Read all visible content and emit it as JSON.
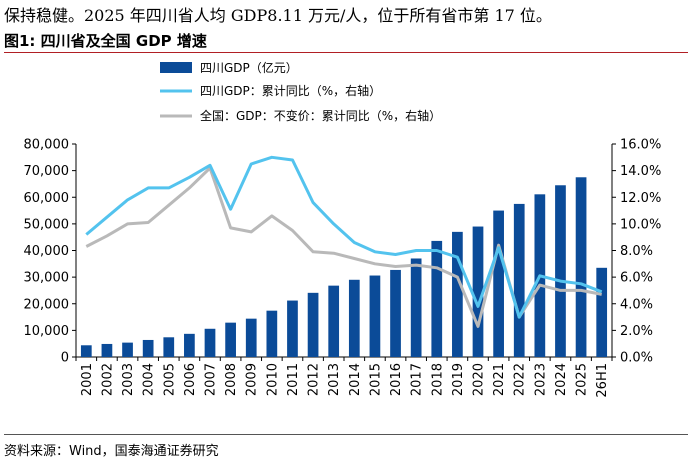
{
  "header": {
    "top_text": "保持稳健。2025 年四川省人均 GDP8.11 万元/人，位于所有省市第 17 位。",
    "figure_title": "图1:  四川省及全国 GDP 增速"
  },
  "footer": {
    "source": "资料来源：Wind，国泰海通证券研究"
  },
  "colors": {
    "bar": "#0b4b98",
    "sichuan_line": "#53c3ee",
    "national_line": "#b9b9b9"
  },
  "chart_data": {
    "type": "bar",
    "categories": [
      "2001",
      "2002",
      "2003",
      "2004",
      "2005",
      "2006",
      "2007",
      "2008",
      "2009",
      "2010",
      "2011",
      "2012",
      "2013",
      "2014",
      "2015",
      "2016",
      "2017",
      "2018",
      "2019",
      "2020",
      "2021",
      "2022",
      "2023",
      "2024",
      "2025",
      "26H1"
    ],
    "series": [
      {
        "name": "四川GDP（亿元）",
        "type": "bar",
        "axis": "left",
        "values": [
          4400,
          4900,
          5400,
          6400,
          7400,
          8700,
          10600,
          12900,
          14400,
          17400,
          21200,
          24100,
          26800,
          29000,
          30600,
          32700,
          37000,
          43600,
          47000,
          49000,
          55000,
          57500,
          61100,
          64500,
          67500,
          33500
        ]
      },
      {
        "name": "四川GDP：累计同比（%，右轴）",
        "type": "line",
        "axis": "right",
        "values": [
          9.2,
          10.5,
          11.8,
          12.7,
          12.7,
          13.5,
          14.4,
          11.1,
          14.5,
          15.0,
          14.8,
          11.6,
          10.0,
          8.6,
          7.9,
          7.7,
          8.0,
          8.0,
          7.5,
          3.8,
          8.2,
          3.0,
          6.1,
          5.7,
          5.5,
          4.9
        ]
      },
      {
        "name": "全国：GDP：不变价：累计同比（%，右轴）",
        "type": "line",
        "axis": "right",
        "values": [
          8.3,
          9.1,
          10.0,
          10.1,
          11.4,
          12.7,
          14.2,
          9.7,
          9.4,
          10.6,
          9.5,
          7.9,
          7.8,
          7.4,
          7.0,
          6.8,
          6.9,
          6.7,
          6.0,
          2.3,
          8.4,
          3.0,
          5.4,
          5.0,
          5.0,
          4.7
        ]
      }
    ],
    "y_left": {
      "ylim": [
        0,
        80000
      ],
      "ticks": [
        "0",
        "10,000",
        "20,000",
        "30,000",
        "40,000",
        "50,000",
        "60,000",
        "70,000",
        "80,000"
      ]
    },
    "y_right": {
      "ylim": [
        0,
        16
      ],
      "ticks": [
        "0.0%",
        "2.0%",
        "4.0%",
        "6.0%",
        "8.0%",
        "10.0%",
        "12.0%",
        "14.0%",
        "16.0%"
      ]
    },
    "grid": false,
    "legend_placement": "top-left"
  }
}
